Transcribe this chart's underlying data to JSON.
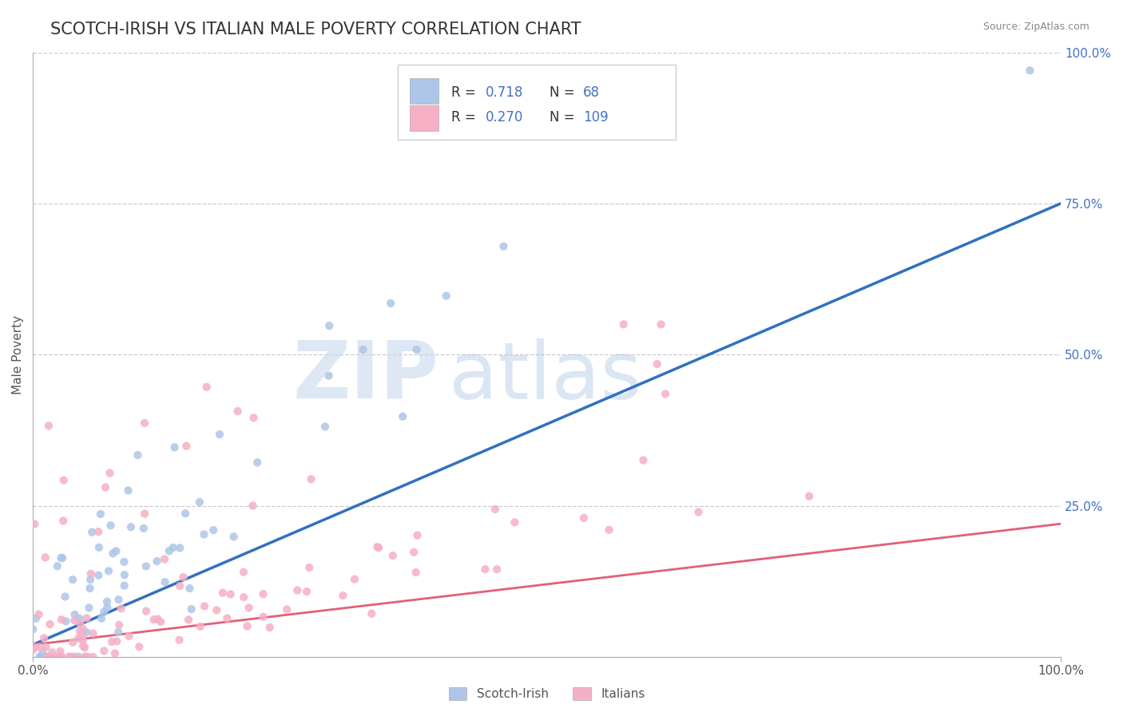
{
  "title": "SCOTCH-IRISH VS ITALIAN MALE POVERTY CORRELATION CHART",
  "source_text": "Source: ZipAtlas.com",
  "ylabel": "Male Poverty",
  "xlim": [
    0,
    1
  ],
  "ylim": [
    0,
    1
  ],
  "x_ticks": [
    0,
    1
  ],
  "x_tick_labels": [
    "0.0%",
    "100.0%"
  ],
  "y_ticks_right": [
    0.25,
    0.5,
    0.75,
    1.0
  ],
  "y_tick_labels_right": [
    "25.0%",
    "50.0%",
    "75.0%",
    "100.0%"
  ],
  "grid_color": "#cccccc",
  "background_color": "#ffffff",
  "scotch_irish_color": "#adc6e8",
  "scotch_irish_line_color": "#3070c0",
  "italian_color": "#f5b0c5",
  "italian_line_color": "#e0607a",
  "R_scotch": 0.718,
  "N_scotch": 68,
  "R_italian": 0.27,
  "N_italian": 109,
  "watermark_zip": "ZIP",
  "watermark_atlas": "atlas",
  "title_color": "#333333",
  "title_fontsize": 15,
  "label_color": "#4472c4",
  "legend_label_scotch": "Scotch-Irish",
  "legend_label_italian": "Italians",
  "blue_line_x0": 0.0,
  "blue_line_y0": 0.02,
  "blue_line_x1": 1.0,
  "blue_line_y1": 0.75,
  "pink_line_x0": 0.0,
  "pink_line_y0": 0.02,
  "pink_line_x1": 1.0,
  "pink_line_y1": 0.22
}
